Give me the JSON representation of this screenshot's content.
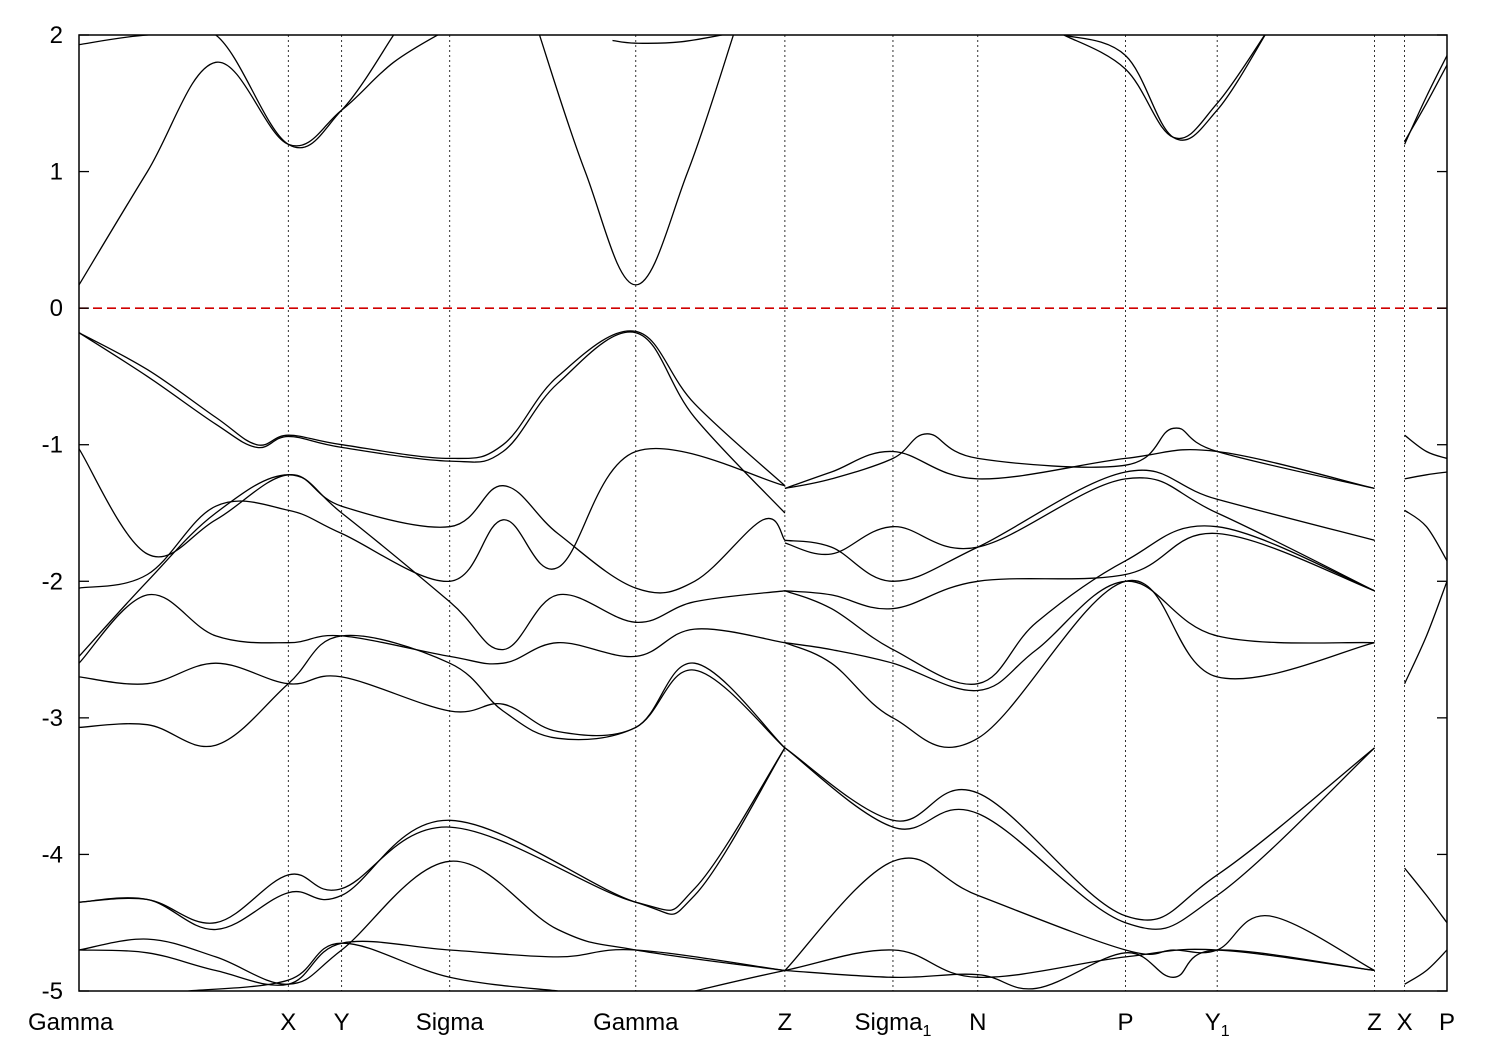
{
  "chart_data": {
    "type": "line",
    "title": "",
    "xlabel": "",
    "ylabel": "",
    "ylim": [
      -5,
      2
    ],
    "yticks": [
      -5,
      -4,
      -3,
      -2,
      -1,
      0,
      1,
      2
    ],
    "ytick_labels": [
      "-5",
      "-4",
      "-3",
      "-2",
      "-1",
      "0",
      "1",
      "2"
    ],
    "xlim": [
      0,
      1.0
    ],
    "kpoints": [
      {
        "label": "Gamma",
        "sub": "",
        "x": 0.0
      },
      {
        "label": "X",
        "sub": "",
        "x": 0.153
      },
      {
        "label": "Y",
        "sub": "",
        "x": 0.192
      },
      {
        "label": "Sigma",
        "sub": "",
        "x": 0.271
      },
      {
        "label": "Gamma",
        "sub": "",
        "x": 0.407
      },
      {
        "label": "Z",
        "sub": "",
        "x": 0.516
      },
      {
        "label": "Sigma",
        "sub": "1",
        "x": 0.595
      },
      {
        "label": "N",
        "sub": "",
        "x": 0.657
      },
      {
        "label": "P",
        "sub": "",
        "x": 0.765
      },
      {
        "label": "Y",
        "sub": "1",
        "x": 0.832
      },
      {
        "label": "Z",
        "sub": "",
        "x": 0.947
      },
      {
        "label": "X",
        "sub": "",
        "x": 0.969
      },
      {
        "label": "P",
        "sub": "",
        "x": 1.0
      }
    ],
    "fermi_level": 0.0,
    "fermi_color": "#d00000",
    "line_color": "#000000",
    "grid": false,
    "series": [
      {
        "x": [
          0.0,
          0.05,
          0.1,
          0.153,
          0.192,
          0.23,
          0.271
        ],
        "y": [
          0.17,
          1.0,
          1.8,
          1.2,
          1.45,
          1.8,
          2.05
        ]
      },
      {
        "x": [
          0.0,
          0.05,
          0.1,
          0.153,
          0.192,
          0.23
        ],
        "y": [
          1.93,
          2.0,
          2.0,
          1.2,
          1.45,
          2.0
        ]
      },
      {
        "x": [
          0.335,
          0.37,
          0.407,
          0.445,
          0.48
        ],
        "y": [
          2.05,
          1.0,
          0.17,
          1.0,
          2.05
        ]
      },
      {
        "x": [
          0.39,
          0.407,
          0.44,
          0.48
        ],
        "y": [
          1.96,
          1.94,
          1.95,
          2.02
        ]
      },
      {
        "x": [
          0.72,
          0.765,
          0.8,
          0.832,
          0.87
        ],
        "y": [
          2.0,
          1.85,
          1.25,
          1.45,
          2.05
        ]
      },
      {
        "x": [
          0.72,
          0.765,
          0.8,
          0.832,
          0.87
        ],
        "y": [
          2.0,
          1.75,
          1.25,
          1.5,
          2.05
        ]
      },
      {
        "x": [
          0.969,
          0.985,
          1.0
        ],
        "y": [
          1.2,
          1.55,
          1.85
        ]
      },
      {
        "x": [
          0.969,
          0.985,
          1.0
        ],
        "y": [
          1.22,
          1.5,
          1.78
        ]
      },
      {
        "x": [
          0.0,
          0.05,
          0.1,
          0.13,
          0.153,
          0.192,
          0.271,
          0.31,
          0.35,
          0.407,
          0.45,
          0.516
        ],
        "y": [
          -0.18,
          -0.45,
          -0.8,
          -1.0,
          -0.93,
          -1.0,
          -1.1,
          -1.0,
          -0.5,
          -0.17,
          -0.7,
          -1.3
        ]
      },
      {
        "x": [
          0.0,
          0.05,
          0.1,
          0.13,
          0.153,
          0.192,
          0.271,
          0.31,
          0.35,
          0.407,
          0.45,
          0.516
        ],
        "y": [
          -0.18,
          -0.5,
          -0.85,
          -1.02,
          -0.94,
          -1.02,
          -1.12,
          -1.05,
          -0.55,
          -0.18,
          -0.8,
          -1.5
        ]
      },
      {
        "x": [
          0.0,
          0.05,
          0.1,
          0.153,
          0.192,
          0.271,
          0.31,
          0.35,
          0.407,
          0.45,
          0.5,
          0.516
        ],
        "y": [
          -1.03,
          -1.8,
          -1.55,
          -1.22,
          -1.45,
          -1.6,
          -1.3,
          -1.65,
          -2.05,
          -2.0,
          -1.55,
          -1.7
        ]
      },
      {
        "x": [
          0.0,
          0.05,
          0.1,
          0.153,
          0.192,
          0.271,
          0.31,
          0.35,
          0.407,
          0.516
        ],
        "y": [
          -2.05,
          -1.95,
          -1.45,
          -1.48,
          -1.65,
          -2.0,
          -1.55,
          -1.9,
          -1.05,
          -1.3
        ]
      },
      {
        "x": [
          0.0,
          0.05,
          0.1,
          0.153,
          0.192,
          0.271,
          0.31,
          0.35,
          0.407,
          0.45,
          0.516
        ],
        "y": [
          -2.55,
          -2.0,
          -1.5,
          -1.22,
          -1.5,
          -2.15,
          -2.5,
          -2.1,
          -2.3,
          -2.15,
          -2.07
        ]
      },
      {
        "x": [
          0.0,
          0.05,
          0.1,
          0.153,
          0.192,
          0.271,
          0.31,
          0.35,
          0.407,
          0.45,
          0.516
        ],
        "y": [
          -2.6,
          -2.1,
          -2.4,
          -2.45,
          -2.4,
          -2.55,
          -2.6,
          -2.45,
          -2.55,
          -2.35,
          -2.45
        ]
      },
      {
        "x": [
          0.0,
          0.05,
          0.1,
          0.153,
          0.192,
          0.271,
          0.31,
          0.35,
          0.407,
          0.45,
          0.516
        ],
        "y": [
          -2.7,
          -2.75,
          -2.6,
          -2.75,
          -2.7,
          -2.95,
          -2.9,
          -3.1,
          -3.07,
          -2.6,
          -3.22
        ]
      },
      {
        "x": [
          0.0,
          0.05,
          0.1,
          0.153,
          0.192,
          0.271,
          0.31,
          0.35,
          0.407,
          0.45,
          0.516
        ],
        "y": [
          -3.07,
          -3.05,
          -3.2,
          -2.75,
          -2.4,
          -2.6,
          -2.95,
          -3.15,
          -3.07,
          -2.65,
          -3.22
        ]
      },
      {
        "x": [
          0.0,
          0.05,
          0.1,
          0.153,
          0.192,
          0.271,
          0.407,
          0.45,
          0.516
        ],
        "y": [
          -4.35,
          -4.33,
          -4.5,
          -4.15,
          -4.25,
          -3.8,
          -4.35,
          -4.25,
          -3.22
        ]
      },
      {
        "x": [
          0.0,
          0.05,
          0.1,
          0.153,
          0.192,
          0.271,
          0.407,
          0.45,
          0.516
        ],
        "y": [
          -4.35,
          -4.33,
          -4.55,
          -4.28,
          -4.3,
          -3.75,
          -4.35,
          -4.3,
          -3.22
        ]
      },
      {
        "x": [
          0.0,
          0.05,
          0.1,
          0.153,
          0.192,
          0.271,
          0.35,
          0.407,
          0.516
        ],
        "y": [
          -4.7,
          -4.62,
          -4.75,
          -4.95,
          -4.7,
          -4.05,
          -4.55,
          -4.7,
          -4.85
        ]
      },
      {
        "x": [
          0.0,
          0.05,
          0.1,
          0.153,
          0.192,
          0.271,
          0.35,
          0.407,
          0.516
        ],
        "y": [
          -4.7,
          -4.72,
          -4.85,
          -4.95,
          -4.65,
          -4.7,
          -4.75,
          -4.7,
          -4.85
        ]
      },
      {
        "x": [
          0.08,
          0.153,
          0.192,
          0.271,
          0.35
        ],
        "y": [
          -5.0,
          -4.92,
          -4.65,
          -4.9,
          -5.0
        ]
      },
      {
        "x": [
          0.45,
          0.516,
          0.595,
          0.657,
          0.765,
          0.832,
          0.947
        ],
        "y": [
          -5.0,
          -4.85,
          -4.7,
          -4.9,
          -4.75,
          -4.7,
          -4.85
        ]
      },
      {
        "x": [
          0.516,
          0.595,
          0.657,
          0.7,
          0.765,
          0.8,
          0.832,
          0.947
        ],
        "y": [
          -4.85,
          -4.9,
          -4.88,
          -4.98,
          -4.72,
          -4.9,
          -4.7,
          -4.85
        ]
      },
      {
        "x": [
          0.516,
          0.595,
          0.657,
          0.765,
          0.8,
          0.832,
          0.87,
          0.947
        ],
        "y": [
          -4.85,
          -4.05,
          -4.3,
          -4.7,
          -4.7,
          -4.7,
          -4.45,
          -4.85
        ]
      },
      {
        "x": [
          0.516,
          0.595,
          0.657,
          0.765,
          0.832,
          0.947
        ],
        "y": [
          -3.22,
          -3.75,
          -3.55,
          -4.45,
          -4.15,
          -3.22
        ]
      },
      {
        "x": [
          0.516,
          0.595,
          0.657,
          0.765,
          0.832,
          0.947
        ],
        "y": [
          -3.22,
          -3.8,
          -3.7,
          -4.5,
          -4.3,
          -3.22
        ]
      },
      {
        "x": [
          0.516,
          0.55,
          0.595,
          0.657,
          0.765,
          0.832,
          0.947
        ],
        "y": [
          -2.45,
          -2.6,
          -3.0,
          -3.15,
          -2.0,
          -2.7,
          -2.45
        ]
      },
      {
        "x": [
          0.516,
          0.55,
          0.595,
          0.657,
          0.7,
          0.765,
          0.832,
          0.947
        ],
        "y": [
          -2.45,
          -2.5,
          -2.6,
          -2.8,
          -2.5,
          -2.0,
          -2.4,
          -2.45
        ]
      },
      {
        "x": [
          0.516,
          0.55,
          0.595,
          0.657,
          0.7,
          0.765,
          0.832,
          0.947
        ],
        "y": [
          -2.07,
          -2.2,
          -2.5,
          -2.75,
          -2.3,
          -1.85,
          -1.6,
          -2.07
        ]
      },
      {
        "x": [
          0.516,
          0.55,
          0.595,
          0.657,
          0.765,
          0.832,
          0.947
        ],
        "y": [
          -1.7,
          -1.75,
          -2.0,
          -1.75,
          -1.2,
          -1.4,
          -1.7
        ]
      },
      {
        "x": [
          0.516,
          0.55,
          0.595,
          0.657,
          0.765,
          0.832,
          0.947
        ],
        "y": [
          -1.32,
          -1.2,
          -1.05,
          -1.25,
          -1.1,
          -1.05,
          -1.32
        ]
      },
      {
        "x": [
          0.516,
          0.55,
          0.595,
          0.62,
          0.657,
          0.765,
          0.8,
          0.832,
          0.947
        ],
        "y": [
          -1.32,
          -1.25,
          -1.1,
          -0.92,
          -1.1,
          -1.15,
          -0.88,
          -1.05,
          -1.32
        ]
      },
      {
        "x": [
          0.516,
          0.55,
          0.595,
          0.657,
          0.765,
          0.832,
          0.947
        ],
        "y": [
          -1.72,
          -1.8,
          -1.6,
          -1.75,
          -1.25,
          -1.5,
          -2.07
        ]
      },
      {
        "x": [
          0.516,
          0.55,
          0.595,
          0.657,
          0.765,
          0.832,
          0.947
        ],
        "y": [
          -2.07,
          -2.1,
          -2.2,
          -2.0,
          -1.95,
          -1.65,
          -2.07
        ]
      },
      {
        "x": [
          0.969,
          0.985,
          1.0
        ],
        "y": [
          -0.93,
          -1.05,
          -1.1
        ]
      },
      {
        "x": [
          0.969,
          0.985,
          1.0
        ],
        "y": [
          -1.25,
          -1.22,
          -1.2
        ]
      },
      {
        "x": [
          0.969,
          0.985,
          1.0
        ],
        "y": [
          -1.48,
          -1.6,
          -1.85
        ]
      },
      {
        "x": [
          0.969,
          0.985,
          1.0
        ],
        "y": [
          -2.75,
          -2.4,
          -2.0
        ]
      },
      {
        "x": [
          0.969,
          0.985,
          1.0
        ],
        "y": [
          -4.1,
          -4.3,
          -4.5
        ]
      },
      {
        "x": [
          0.969,
          0.985,
          1.0
        ],
        "y": [
          -4.95,
          -4.85,
          -4.7
        ]
      }
    ]
  }
}
